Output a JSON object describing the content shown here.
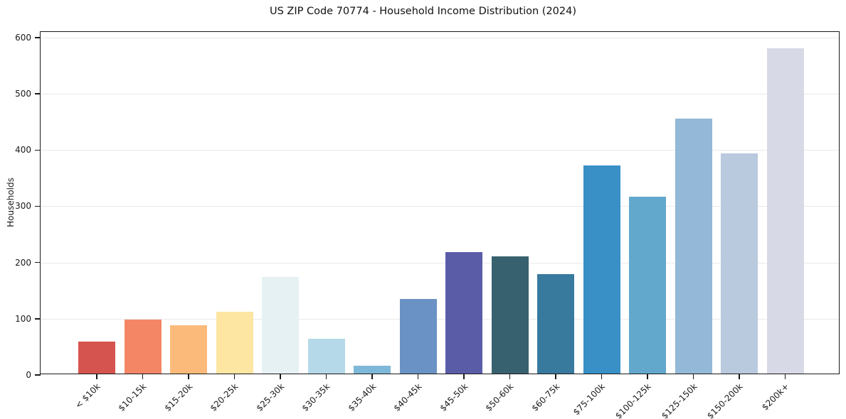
{
  "chart_data": {
    "type": "bar",
    "title": "US ZIP Code 70774 - Household Income Distribution (2024)",
    "xlabel": "",
    "ylabel": "Households",
    "categories": [
      "< $10k",
      "$10-15k",
      "$15-20k",
      "$20-25k",
      "$25-30k",
      "$30-35k",
      "$35-40k",
      "$40-45k",
      "$45-50k",
      "$50-60k",
      "$60-75k",
      "$75-100k",
      "$100-125k",
      "$125-150k",
      "$150-200k",
      "$200k+"
    ],
    "values": [
      57,
      96,
      86,
      110,
      172,
      62,
      14,
      132,
      216,
      208,
      177,
      370,
      314,
      453,
      391,
      579
    ],
    "bar_colors": [
      "#d6544f",
      "#f48665",
      "#fcba7a",
      "#fde5a2",
      "#e6f1f4",
      "#b5d9e8",
      "#7eb8d8",
      "#6b92c4",
      "#5a5ca8",
      "#38616f",
      "#38799e",
      "#3890c6",
      "#62a8cd",
      "#93b8d8",
      "#b9c9de",
      "#d7dae6"
    ],
    "yticks": [
      0,
      100,
      200,
      300,
      400,
      500,
      600
    ],
    "ylim": [
      0,
      610
    ],
    "grid": true,
    "legend": "none",
    "background_color": "#ffffff",
    "axis_color": "#1a1a1a",
    "grid_color": "#e9e9e9"
  }
}
